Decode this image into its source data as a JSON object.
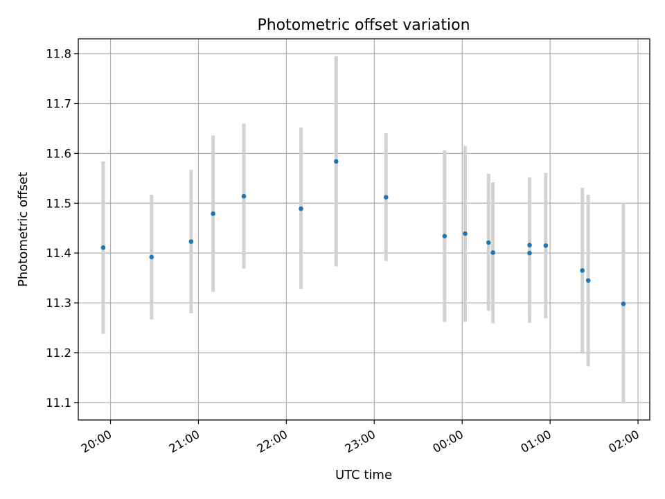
{
  "chart_data": {
    "type": "scatter",
    "title": "Photometric offset variation",
    "xlabel": "UTC time",
    "ylabel": "Photometric offset",
    "x_axis": {
      "scale": "time",
      "range": [
        "19:38",
        "02:08"
      ],
      "ticks": [
        "20:00",
        "21:00",
        "22:00",
        "23:00",
        "00:00",
        "01:00",
        "02:00"
      ],
      "tick_label_rotation": "30 degrees"
    },
    "y_axis": {
      "range": [
        11.065,
        11.83
      ],
      "ticks": [
        "11.1",
        "11.2",
        "11.3",
        "11.4",
        "11.5",
        "11.6",
        "11.7",
        "11.8"
      ]
    },
    "grid": true,
    "legend": "none",
    "colors": {
      "marker": "#1f77b4",
      "errorbar": "#d3d3d3",
      "grid": "#b0b0b0"
    },
    "series": [
      {
        "points": [
          {
            "x": "19:55",
            "y": 11.411,
            "yerr_low": 11.238,
            "yerr_high": 11.584
          },
          {
            "x": "20:28",
            "y": 11.392,
            "yerr_low": 11.267,
            "yerr_high": 11.517
          },
          {
            "x": "20:55",
            "y": 11.423,
            "yerr_low": 11.279,
            "yerr_high": 11.567
          },
          {
            "x": "21:10",
            "y": 11.479,
            "yerr_low": 11.322,
            "yerr_high": 11.636
          },
          {
            "x": "21:31",
            "y": 11.514,
            "yerr_low": 11.369,
            "yerr_high": 11.66
          },
          {
            "x": "22:10",
            "y": 11.489,
            "yerr_low": 11.328,
            "yerr_high": 11.652
          },
          {
            "x": "22:34",
            "y": 11.584,
            "yerr_low": 11.373,
            "yerr_high": 11.795
          },
          {
            "x": "23:08",
            "y": 11.512,
            "yerr_low": 11.384,
            "yerr_high": 11.641
          },
          {
            "x": "23:48",
            "y": 11.434,
            "yerr_low": 11.262,
            "yerr_high": 11.606
          },
          {
            "x": "00:02",
            "y": 11.439,
            "yerr_low": 11.262,
            "yerr_high": 11.615
          },
          {
            "x": "00:18",
            "y": 11.421,
            "yerr_low": 11.284,
            "yerr_high": 11.559
          },
          {
            "x": "00:21",
            "y": 11.401,
            "yerr_low": 11.259,
            "yerr_high": 11.542
          },
          {
            "x": "00:46",
            "y": 11.4,
            "yerr_low": 11.26,
            "yerr_high": 11.552
          },
          {
            "x": "00:46",
            "y": 11.416,
            "yerr_low": 11.278,
            "yerr_high": 11.552
          },
          {
            "x": "00:57",
            "y": 11.415,
            "yerr_low": 11.269,
            "yerr_high": 11.561
          },
          {
            "x": "01:22",
            "y": 11.365,
            "yerr_low": 11.198,
            "yerr_high": 11.531
          },
          {
            "x": "01:26",
            "y": 11.345,
            "yerr_low": 11.173,
            "yerr_high": 11.517
          },
          {
            "x": "01:50",
            "y": 11.298,
            "yerr_low": 11.098,
            "yerr_high": 11.5
          }
        ]
      }
    ]
  }
}
